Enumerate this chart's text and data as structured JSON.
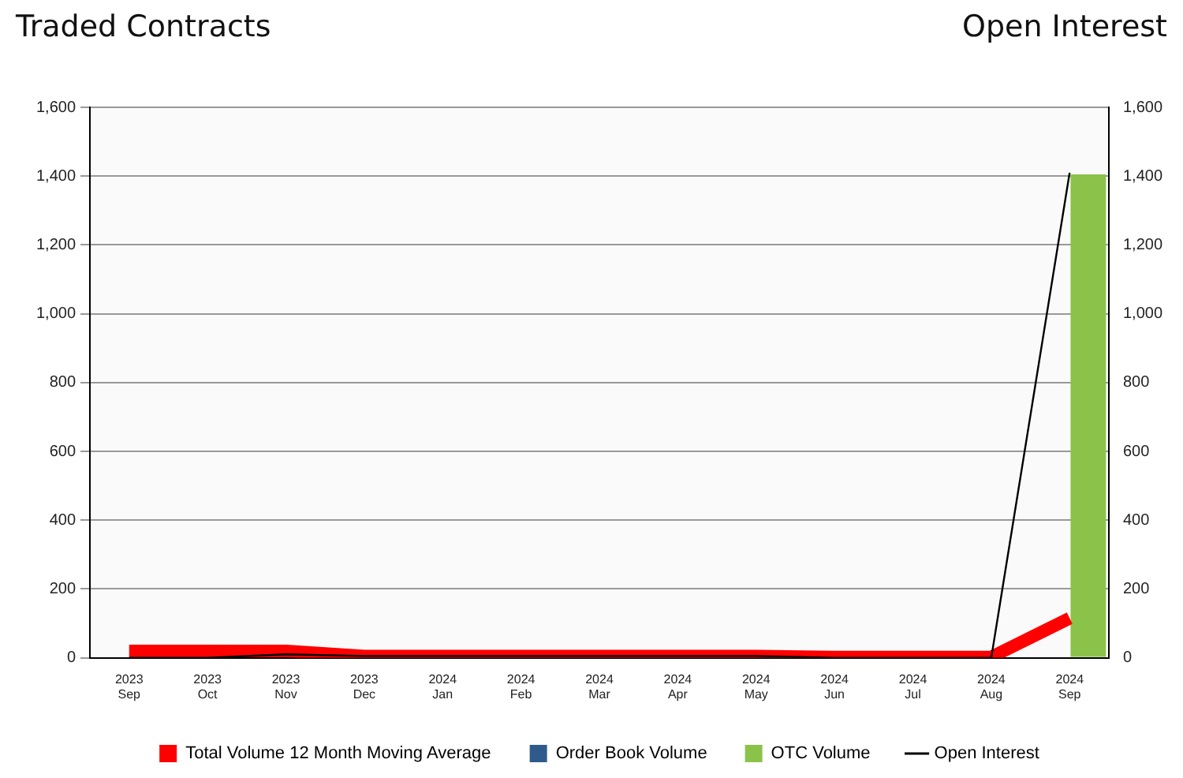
{
  "chart_data": {
    "type": "bar",
    "ylabel": "Traded Contracts",
    "y2label": "Open Interest",
    "categories": [
      "2023 Sep",
      "2023 Oct",
      "2023 Nov",
      "2023 Dec",
      "2024 Jan",
      "2024 Feb",
      "2024 Mar",
      "2024 Apr",
      "2024 May",
      "2024 Jun",
      "2024 Jul",
      "2024 Aug",
      "2024 Sep"
    ],
    "series": [
      {
        "name": "Total Volume 12 Month Moving Average",
        "type": "line",
        "color": "#ff0000",
        "values": [
          20,
          20,
          20,
          5,
          5,
          5,
          5,
          5,
          5,
          2,
          2,
          2,
          115
        ]
      },
      {
        "name": "Order Book Volume",
        "color": "#2f5b8c",
        "values": [
          0,
          0,
          0,
          0,
          0,
          0,
          0,
          0,
          0,
          0,
          0,
          0,
          0
        ]
      },
      {
        "name": "OTC Volume",
        "color": "#8bc34a",
        "values": [
          0,
          0,
          0,
          0,
          0,
          0,
          0,
          0,
          0,
          0,
          0,
          0,
          1405
        ]
      },
      {
        "name": "Open Interest",
        "type": "line",
        "axis": "y2",
        "color": "#000000",
        "values": [
          0,
          0,
          10,
          5,
          5,
          5,
          5,
          5,
          5,
          0,
          0,
          0,
          1410
        ]
      }
    ],
    "ylim": [
      0,
      1600
    ],
    "yticks": [
      0,
      200,
      400,
      600,
      800,
      {
        "value": 1000,
        "label": "1,000"
      },
      {
        "value": 1200,
        "label": "1,200"
      },
      {
        "value": 1400,
        "label": "1,400"
      },
      {
        "value": 1600,
        "label": "1,600"
      }
    ],
    "y2lim": [
      0,
      1600
    ],
    "y2ticks": [
      0,
      200,
      400,
      600,
      800,
      {
        "value": 1000,
        "label": "1,000"
      },
      {
        "value": 1200,
        "label": "1,200"
      },
      {
        "value": 1400,
        "label": "1,400"
      },
      {
        "value": 1600,
        "label": "1,600"
      }
    ],
    "grid": "y",
    "legend": "bottom",
    "marker": "none"
  }
}
